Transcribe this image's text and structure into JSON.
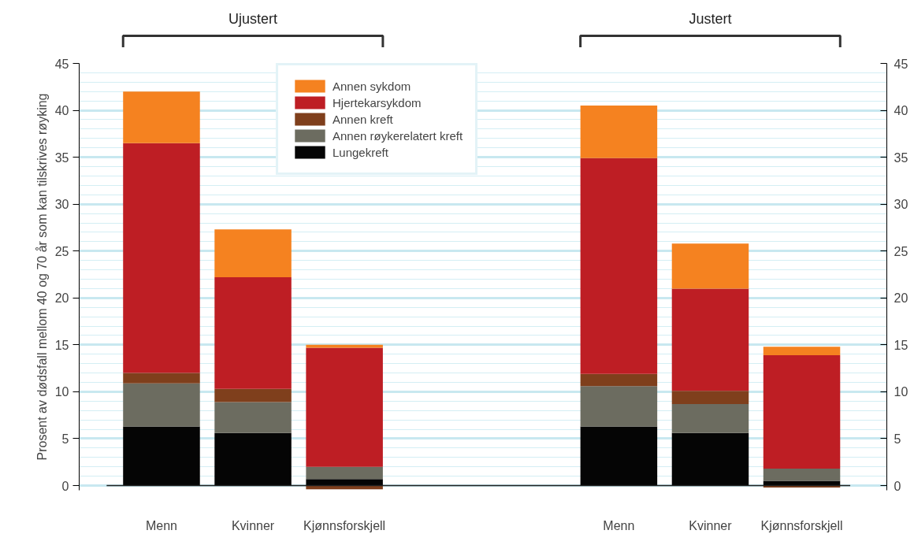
{
  "chart_data": {
    "type": "bar",
    "stacked": true,
    "ylabel": "Prosent av dødsfall mellom 40 og 70 år som kan tilskrives røyking",
    "categories": [
      "Menn",
      "Kvinner",
      "Kjønnsforskjell",
      null,
      null,
      "Menn",
      "Kvinner",
      "Kjønnsforskjell"
    ],
    "annotations": [
      "Ujustert",
      "Justert"
    ],
    "series": [
      {
        "name": "Lungekreft",
        "color": "#050505",
        "values": [
          6.3,
          5.6,
          0.7,
          null,
          null,
          6.3,
          5.6,
          0.5
        ]
      },
      {
        "name": "Annen røykerelatert kreft",
        "color": "#6c6c60",
        "values": [
          4.6,
          3.3,
          1.3,
          null,
          null,
          4.3,
          3.1,
          1.3
        ]
      },
      {
        "name": "Annen kreft",
        "color": "#7f3f1c",
        "values": [
          1.1,
          1.4,
          -0.4,
          null,
          null,
          1.3,
          1.4,
          -0.2
        ]
      },
      {
        "name": "Hjertekarsykdom",
        "color": "#be1e24",
        "values": [
          24.5,
          11.9,
          12.7,
          null,
          null,
          23.0,
          10.9,
          12.1
        ]
      },
      {
        "name": "Annen sykdom",
        "color": "#f58220",
        "values": [
          5.5,
          5.1,
          0.3,
          null,
          null,
          5.6,
          4.8,
          0.9
        ]
      }
    ],
    "ylim": [
      -0.5,
      45
    ],
    "yticks": [
      0,
      5,
      10,
      15,
      20,
      25,
      30,
      35,
      40,
      45
    ],
    "y2lim": [
      -0.5,
      45
    ],
    "y2ticks": [
      0,
      5,
      10,
      15,
      20,
      25,
      30,
      35,
      40,
      45
    ],
    "grid": "y",
    "legend": "top"
  }
}
